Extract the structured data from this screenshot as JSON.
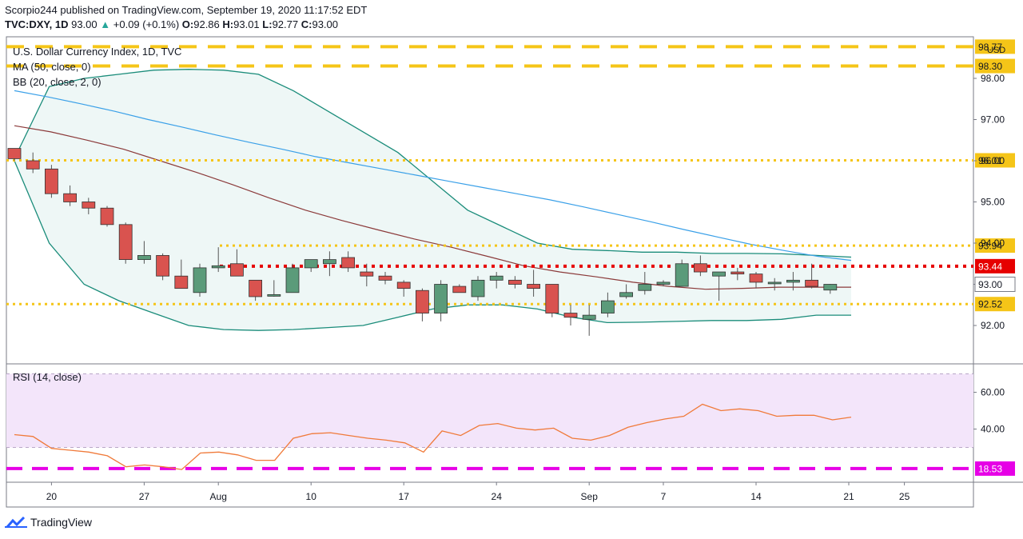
{
  "header": {
    "published": "Scorpio244 published on TradingView.com, September 19, 2020 11:17:52 EDT",
    "symbol": "TVC:DXY, 1D",
    "price": "93.00",
    "change": "+0.09 (+0.1%)",
    "o_label": "O:",
    "o": "92.86",
    "h_label": "H:",
    "h": "93.01",
    "l_label": "L:",
    "l": "92.77",
    "c_label": "C:",
    "c": "93.00"
  },
  "legend": {
    "title": "U.S. Dollar Currency Index, 1D, TVC",
    "ma": "MA (50, close, 0)",
    "bb": "BB (20, close, 2, 0)",
    "rsi": "RSI (14, close)"
  },
  "brand": "TradingView",
  "colors": {
    "up": "#5b9b7a",
    "down": "#d9534f",
    "ma": "#8b3a3a",
    "bb_basis": "#3aa0e8",
    "bb_band": "#1a8c7a",
    "bb_fill": "#eef7f6",
    "yellow": "#f5c518",
    "red_level": "#e60000",
    "magenta": "#e600e6",
    "rsi_line": "#f07a3a",
    "rsi_bg": "#f3e5fa"
  },
  "chart_data": [
    {
      "type": "candlestick",
      "title": "U.S. Dollar Currency Index, 1D, TVC",
      "currency": "USD",
      "ylim": [
        91.0,
        98.8
      ],
      "y_ticks": [
        "92.00",
        "93.00",
        "94.00",
        "95.00",
        "96.00",
        "97.00",
        "98.00"
      ],
      "x_ticks": [
        "20",
        "27",
        "Aug",
        "10",
        "17",
        "24",
        "Sep",
        "7",
        "14",
        "21",
        "25"
      ],
      "x_tick_days": [
        2,
        7,
        11,
        16,
        21,
        26,
        31,
        35,
        40,
        45,
        48
      ],
      "candles_ohlc": [
        [
          96.3,
          96.3,
          96.0,
          96.05
        ],
        [
          96.0,
          96.2,
          95.7,
          95.8
        ],
        [
          95.8,
          95.9,
          95.1,
          95.2
        ],
        [
          95.2,
          95.4,
          94.9,
          95.0
        ],
        [
          95.0,
          95.1,
          94.7,
          94.85
        ],
        [
          94.85,
          94.9,
          94.4,
          94.45
        ],
        [
          94.45,
          94.5,
          93.5,
          93.6
        ],
        [
          93.6,
          94.05,
          93.5,
          93.7
        ],
        [
          93.7,
          93.75,
          93.1,
          93.2
        ],
        [
          93.2,
          93.6,
          92.9,
          92.9
        ],
        [
          92.8,
          93.5,
          92.7,
          93.4
        ],
        [
          93.4,
          93.9,
          93.3,
          93.45
        ],
        [
          93.5,
          93.85,
          93.2,
          93.2
        ],
        [
          93.1,
          93.1,
          92.6,
          92.7
        ],
        [
          92.75,
          93.1,
          92.7,
          92.75
        ],
        [
          92.8,
          93.5,
          92.8,
          93.4
        ],
        [
          93.4,
          93.6,
          93.3,
          93.6
        ],
        [
          93.5,
          93.8,
          93.2,
          93.6
        ],
        [
          93.65,
          93.8,
          93.3,
          93.4
        ],
        [
          93.3,
          93.5,
          92.95,
          93.2
        ],
        [
          93.2,
          93.3,
          93.0,
          93.1
        ],
        [
          93.05,
          93.1,
          92.7,
          92.9
        ],
        [
          92.85,
          92.9,
          92.1,
          92.3
        ],
        [
          92.3,
          93.1,
          92.1,
          93.0
        ],
        [
          92.95,
          93.0,
          92.8,
          92.8
        ],
        [
          92.7,
          93.2,
          92.6,
          93.1
        ],
        [
          93.1,
          93.3,
          92.9,
          93.2
        ],
        [
          93.1,
          93.2,
          92.9,
          93.0
        ],
        [
          93.0,
          93.35,
          92.7,
          92.9
        ],
        [
          93.0,
          93.0,
          92.2,
          92.3
        ],
        [
          92.3,
          92.5,
          92.0,
          92.2
        ],
        [
          92.15,
          92.5,
          91.75,
          92.25
        ],
        [
          92.3,
          92.8,
          92.2,
          92.6
        ],
        [
          92.7,
          93.0,
          92.65,
          92.8
        ],
        [
          92.85,
          93.3,
          92.75,
          93.0
        ],
        [
          93.0,
          93.1,
          92.95,
          93.05
        ],
        [
          92.95,
          93.6,
          92.95,
          93.5
        ],
        [
          93.5,
          93.7,
          93.2,
          93.3
        ],
        [
          93.2,
          93.3,
          92.6,
          93.3
        ],
        [
          93.3,
          93.4,
          93.1,
          93.25
        ],
        [
          93.25,
          93.3,
          92.9,
          93.05
        ],
        [
          93.05,
          93.15,
          92.85,
          93.05
        ],
        [
          93.05,
          93.3,
          92.85,
          93.1
        ],
        [
          93.1,
          93.5,
          92.9,
          92.95
        ],
        [
          92.86,
          93.01,
          92.77,
          93.0
        ]
      ],
      "ma50": [
        96.85,
        96.7,
        96.5,
        96.28,
        96.0,
        95.72,
        95.42,
        95.1,
        94.8,
        94.55,
        94.32,
        94.1,
        93.9,
        93.68,
        93.45,
        93.3,
        93.18,
        93.05,
        92.95,
        92.88,
        92.9,
        92.93,
        92.93,
        92.93
      ],
      "bb_basis": [
        97.7,
        97.55,
        97.38,
        97.2,
        97.0,
        96.82,
        96.63,
        96.45,
        96.28,
        96.1,
        95.95,
        95.8,
        95.65,
        95.5,
        95.35,
        95.2,
        95.05,
        94.88,
        94.7,
        94.52,
        94.33,
        94.15,
        93.97,
        93.82,
        93.68,
        93.58
      ],
      "bb_upper": [
        96.05,
        97.8,
        98.0,
        98.1,
        98.2,
        98.22,
        98.2,
        98.1,
        97.7,
        97.2,
        96.7,
        96.2,
        95.5,
        94.8,
        94.4,
        94.0,
        93.85,
        93.82,
        93.78,
        93.78,
        93.75,
        93.75,
        93.74,
        93.7,
        93.66
      ],
      "bb_lower": [
        96.0,
        94.0,
        93.0,
        92.6,
        92.3,
        92.0,
        91.9,
        91.88,
        91.9,
        91.95,
        92.0,
        92.2,
        92.4,
        92.5,
        92.5,
        92.4,
        92.2,
        92.07,
        92.08,
        92.1,
        92.12,
        92.12,
        92.15,
        92.25,
        92.25
      ],
      "levels": [
        {
          "value": 98.77,
          "label": "98.77",
          "color": "#f5c518",
          "style": "dash-heavy"
        },
        {
          "value": 98.3,
          "label": "98.30",
          "color": "#f5c518",
          "style": "dash-heavy"
        },
        {
          "value": 96.01,
          "label": "96.01",
          "color": "#f5c518",
          "style": "dotted"
        },
        {
          "value": 93.94,
          "label": "93.94",
          "color": "#f5c518",
          "style": "dotted"
        },
        {
          "value": 93.44,
          "label": "93.44",
          "color": "#e60000",
          "style": "dotted"
        },
        {
          "value": 92.52,
          "label": "92.52",
          "color": "#f5c518",
          "style": "dotted"
        }
      ],
      "last_price": {
        "value": 93.0,
        "label": "93.00"
      }
    },
    {
      "type": "line",
      "title": "RSI (14, close)",
      "ylim": [
        10,
        72
      ],
      "y_ticks": [
        "40.00",
        "60.00"
      ],
      "band": [
        30,
        70
      ],
      "level": {
        "value": 18.53,
        "label": "18.53"
      },
      "values": [
        37.0,
        36.0,
        29.5,
        28.5,
        27.5,
        25.5,
        19.5,
        20.5,
        19.5,
        18.0,
        27.0,
        27.5,
        26.0,
        23.0,
        23.0,
        35.0,
        37.5,
        38.0,
        36.5,
        35.0,
        34.0,
        32.5,
        27.5,
        39.0,
        36.5,
        42.0,
        43.0,
        40.5,
        39.5,
        40.5,
        35.0,
        34.0,
        36.5,
        41.0,
        43.5,
        45.5,
        47.0,
        53.5,
        50.0,
        51.0,
        50.0,
        47.0,
        47.5,
        47.5,
        45.0,
        46.5
      ]
    }
  ]
}
